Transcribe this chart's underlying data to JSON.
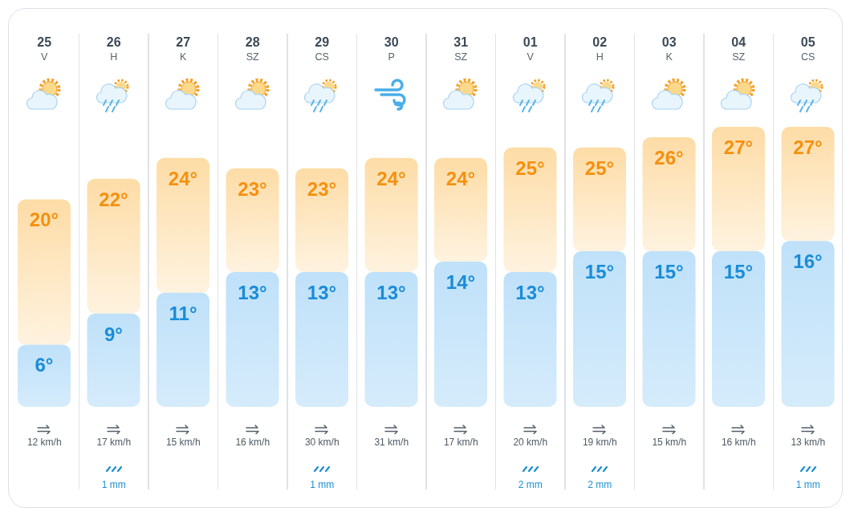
{
  "chart_data": {
    "type": "bar",
    "stacked": true,
    "categories": [
      "25\nV",
      "26\nH",
      "27\nK",
      "28\nSZ",
      "29\nCS",
      "30\nP",
      "31\nSZ",
      "01\nV",
      "02\nH",
      "03\nK",
      "04\nSZ",
      "05\nCS"
    ],
    "series": [
      {
        "color": "#bfe1f9",
        "values": [
          6,
          9,
          11,
          13,
          13,
          13,
          14,
          13,
          15,
          15,
          15,
          16
        ],
        "value_labels": [
          "6°",
          "9°",
          "11°",
          "13°",
          "13°",
          "13°",
          "14°",
          "13°",
          "15°",
          "15°",
          "15°",
          "16°"
        ]
      },
      {
        "color": "#fddca6",
        "values": [
          14,
          13,
          13,
          10,
          10,
          11,
          10,
          12,
          10,
          11,
          12,
          11
        ]
      }
    ],
    "totals": [
      "20°",
      "22°",
      "24°",
      "23°",
      "23°",
      "24°",
      "24°",
      "25°",
      "25°",
      "26°",
      "27°",
      "27°"
    ],
    "annotations": [
      "12 km/h",
      "17 km/h",
      "15 km/h",
      "16 km/h",
      "30 km/h",
      "31 km/h",
      "17 km/h",
      "20 km/h",
      "19 km/h",
      "15 km/h",
      "16 km/h",
      "13 km/h",
      "1 mm",
      "1 mm",
      "2 mm",
      "2 mm",
      "1 mm"
    ]
  }
}
